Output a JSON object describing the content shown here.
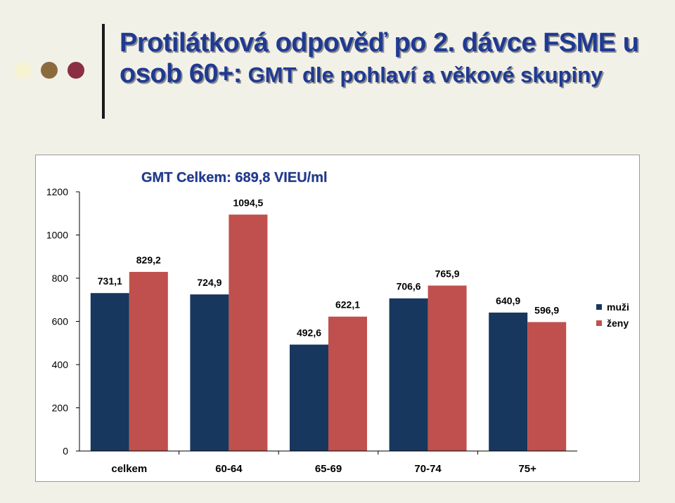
{
  "slide": {
    "title_part1": "Protilátková odpověď po 2. dávce FSME u osob  60+:",
    "title_part2": " GMT dle pohlaví a věkové skupiny",
    "bullet_colors": [
      "#f6f3d2",
      "#8b6b3d",
      "#8b2f45"
    ]
  },
  "chart_data": {
    "type": "bar",
    "annotation": "GMT Celkem: 689,8 VIEU/ml",
    "categories": [
      "celkem",
      "60-64",
      "65-69",
      "70-74",
      "75+"
    ],
    "series": [
      {
        "name": "muži",
        "color": "#17375e",
        "values": [
          731.1,
          724.9,
          492.6,
          706.6,
          640.9
        ],
        "labels": [
          "731,1",
          "724,9",
          "492,6",
          "706,6",
          "640,9"
        ]
      },
      {
        "name": "ženy",
        "color": "#c0504d",
        "values": [
          829.2,
          1094.5,
          622.1,
          765.9,
          596.9
        ],
        "labels": [
          "829,2",
          "1094,5",
          "622,1",
          "765,9",
          "596,9"
        ]
      }
    ],
    "yticks": [
      "0",
      "200",
      "400",
      "600",
      "800",
      "1000",
      "1200"
    ],
    "ylim": [
      0,
      1200
    ],
    "grid": false,
    "legend_position": "right"
  }
}
